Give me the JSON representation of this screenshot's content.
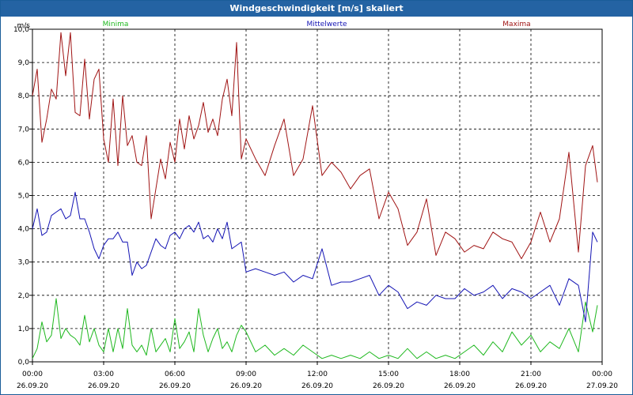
{
  "window": {
    "title": "Windgeschwindigkeit [m/s] skaliert"
  },
  "colors": {
    "minima": "#1fb81f",
    "mittel": "#1414b4",
    "maxima": "#a01414",
    "grid": "#000000"
  },
  "chart_data": {
    "type": "line",
    "title": "Windgeschwindigkeit [m/s] skaliert",
    "ylabel": "m/s",
    "ylim": [
      0,
      10
    ],
    "xlim": [
      0,
      24
    ],
    "grid": true,
    "y_ticks": [
      "0,0",
      "1,0",
      "2,0",
      "3,0",
      "4,0",
      "5,0",
      "6,0",
      "7,0",
      "8,0",
      "9,0",
      "10,0"
    ],
    "x_ticks": [
      {
        "time": "00:00",
        "date": "26.09.20",
        "h": 0
      },
      {
        "time": "03:00",
        "date": "26.09.20",
        "h": 3
      },
      {
        "time": "06:00",
        "date": "26.09.20",
        "h": 6
      },
      {
        "time": "09:00",
        "date": "26.09.20",
        "h": 9
      },
      {
        "time": "12:00",
        "date": "26.09.20",
        "h": 12
      },
      {
        "time": "15:00",
        "date": "26.09.20",
        "h": 15
      },
      {
        "time": "18:00",
        "date": "26.09.20",
        "h": 18
      },
      {
        "time": "21:00",
        "date": "26.09.20",
        "h": 21
      },
      {
        "time": "00:00",
        "date": "27.09.20",
        "h": 24
      }
    ],
    "series": [
      {
        "name": "Minima",
        "key": "minima",
        "x": [
          0,
          0.2,
          0.4,
          0.6,
          0.8,
          1.0,
          1.2,
          1.4,
          1.6,
          1.8,
          2.0,
          2.2,
          2.4,
          2.6,
          2.8,
          3.0,
          3.2,
          3.4,
          3.6,
          3.8,
          4.0,
          4.2,
          4.4,
          4.6,
          4.8,
          5.0,
          5.2,
          5.4,
          5.6,
          5.8,
          6.0,
          6.2,
          6.4,
          6.6,
          6.8,
          7.0,
          7.2,
          7.4,
          7.6,
          7.8,
          8.0,
          8.2,
          8.4,
          8.6,
          8.8,
          9.0,
          9.4,
          9.8,
          10.2,
          10.6,
          11.0,
          11.4,
          11.8,
          12.2,
          12.6,
          13.0,
          13.4,
          13.8,
          14.2,
          14.6,
          15.0,
          15.4,
          15.8,
          16.2,
          16.6,
          17.0,
          17.4,
          17.8,
          18.2,
          18.6,
          19.0,
          19.4,
          19.8,
          20.2,
          20.6,
          21.0,
          21.4,
          21.8,
          22.2,
          22.6,
          23.0,
          23.3,
          23.6,
          23.8
        ],
        "values": [
          0.1,
          0.4,
          1.2,
          0.6,
          0.8,
          1.9,
          0.7,
          1.0,
          0.8,
          0.7,
          0.5,
          1.4,
          0.6,
          1.0,
          0.5,
          0.3,
          1.0,
          0.3,
          1.0,
          0.4,
          1.6,
          0.5,
          0.3,
          0.5,
          0.2,
          1.0,
          0.3,
          0.5,
          0.7,
          0.3,
          1.3,
          0.4,
          0.6,
          0.9,
          0.3,
          1.6,
          0.8,
          0.3,
          0.7,
          1.0,
          0.4,
          0.6,
          0.3,
          0.8,
          1.1,
          0.9,
          0.3,
          0.5,
          0.2,
          0.4,
          0.2,
          0.5,
          0.3,
          0.1,
          0.2,
          0.1,
          0.2,
          0.1,
          0.3,
          0.1,
          0.2,
          0.1,
          0.4,
          0.1,
          0.3,
          0.1,
          0.2,
          0.1,
          0.3,
          0.5,
          0.2,
          0.6,
          0.3,
          0.9,
          0.5,
          0.8,
          0.3,
          0.6,
          0.4,
          1.0,
          0.3,
          1.8,
          0.9,
          1.7
        ]
      },
      {
        "name": "Mittelwerte",
        "key": "mittel",
        "x": [
          0,
          0.2,
          0.4,
          0.6,
          0.8,
          1.0,
          1.2,
          1.4,
          1.6,
          1.8,
          2.0,
          2.2,
          2.4,
          2.6,
          2.8,
          3.0,
          3.2,
          3.4,
          3.6,
          3.8,
          4.0,
          4.2,
          4.4,
          4.6,
          4.8,
          5.0,
          5.2,
          5.4,
          5.6,
          5.8,
          6.0,
          6.2,
          6.4,
          6.6,
          6.8,
          7.0,
          7.2,
          7.4,
          7.6,
          7.8,
          8.0,
          8.2,
          8.4,
          8.6,
          8.8,
          9.0,
          9.4,
          9.8,
          10.2,
          10.6,
          11.0,
          11.4,
          11.8,
          12.2,
          12.6,
          13.0,
          13.4,
          13.8,
          14.2,
          14.6,
          15.0,
          15.4,
          15.8,
          16.2,
          16.6,
          17.0,
          17.4,
          17.8,
          18.2,
          18.6,
          19.0,
          19.4,
          19.8,
          20.2,
          20.6,
          21.0,
          21.4,
          21.8,
          22.2,
          22.6,
          23.0,
          23.3,
          23.6,
          23.8
        ],
        "values": [
          4.0,
          4.6,
          3.8,
          3.9,
          4.4,
          4.5,
          4.6,
          4.3,
          4.4,
          5.1,
          4.3,
          4.3,
          3.9,
          3.4,
          3.1,
          3.5,
          3.7,
          3.7,
          3.9,
          3.6,
          3.6,
          2.6,
          3.0,
          2.8,
          2.9,
          3.3,
          3.7,
          3.5,
          3.4,
          3.8,
          3.9,
          3.7,
          4.0,
          4.1,
          3.9,
          4.2,
          3.7,
          3.8,
          3.6,
          4.0,
          3.7,
          4.2,
          3.4,
          3.5,
          3.6,
          2.7,
          2.8,
          2.7,
          2.6,
          2.7,
          2.4,
          2.6,
          2.5,
          3.4,
          2.3,
          2.4,
          2.4,
          2.5,
          2.6,
          2.0,
          2.3,
          2.1,
          1.6,
          1.8,
          1.7,
          2.0,
          1.9,
          1.9,
          2.2,
          2.0,
          2.1,
          2.3,
          1.9,
          2.2,
          2.1,
          1.9,
          2.1,
          2.3,
          1.7,
          2.5,
          2.3,
          1.2,
          3.9,
          3.6
        ]
      },
      {
        "name": "Maxima",
        "key": "maxima",
        "x": [
          0,
          0.2,
          0.4,
          0.6,
          0.8,
          1.0,
          1.2,
          1.4,
          1.6,
          1.8,
          2.0,
          2.2,
          2.4,
          2.6,
          2.8,
          3.0,
          3.2,
          3.4,
          3.6,
          3.8,
          4.0,
          4.2,
          4.4,
          4.6,
          4.8,
          5.0,
          5.2,
          5.4,
          5.6,
          5.8,
          6.0,
          6.2,
          6.4,
          6.6,
          6.8,
          7.0,
          7.2,
          7.4,
          7.6,
          7.8,
          8.0,
          8.2,
          8.4,
          8.6,
          8.8,
          9.0,
          9.4,
          9.8,
          10.2,
          10.6,
          11.0,
          11.4,
          11.8,
          12.2,
          12.6,
          13.0,
          13.4,
          13.8,
          14.2,
          14.6,
          15.0,
          15.4,
          15.8,
          16.2,
          16.6,
          17.0,
          17.4,
          17.8,
          18.2,
          18.6,
          19.0,
          19.4,
          19.8,
          20.2,
          20.6,
          21.0,
          21.4,
          21.8,
          22.2,
          22.6,
          23.0,
          23.3,
          23.6,
          23.8
        ],
        "values": [
          8.0,
          8.8,
          6.6,
          7.3,
          8.2,
          7.9,
          9.9,
          8.6,
          9.9,
          7.5,
          7.4,
          9.1,
          7.3,
          8.5,
          8.8,
          6.7,
          6.0,
          7.9,
          5.9,
          8.0,
          6.5,
          6.8,
          6.0,
          5.9,
          6.8,
          4.3,
          5.2,
          6.1,
          5.5,
          6.6,
          6.0,
          7.3,
          6.4,
          7.4,
          6.7,
          7.1,
          7.8,
          6.9,
          7.3,
          6.8,
          7.9,
          8.5,
          7.4,
          9.6,
          6.1,
          6.7,
          6.1,
          5.6,
          6.5,
          7.3,
          5.6,
          6.1,
          7.7,
          5.6,
          6.0,
          5.7,
          5.2,
          5.6,
          5.8,
          4.3,
          5.1,
          4.6,
          3.5,
          3.9,
          4.9,
          3.2,
          3.9,
          3.7,
          3.3,
          3.5,
          3.4,
          3.9,
          3.7,
          3.6,
          3.1,
          3.6,
          4.5,
          3.6,
          4.3,
          6.3,
          3.3,
          5.9,
          6.5,
          5.4
        ]
      }
    ]
  }
}
